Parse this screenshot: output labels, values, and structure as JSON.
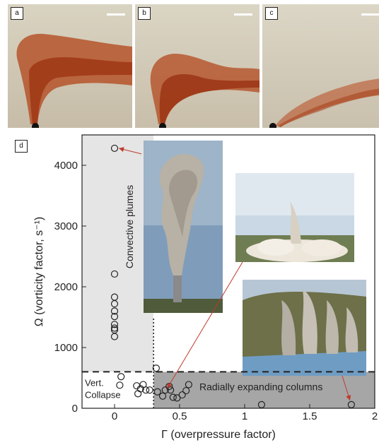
{
  "panels": [
    {
      "label": "a"
    },
    {
      "label": "b"
    },
    {
      "label": "c"
    }
  ],
  "panel_d_label": "d",
  "chart_data": {
    "type": "scatter",
    "xlabel": "Γ (overpressure factor)",
    "ylabel": "Ω (vorticity factor, s⁻¹)",
    "xlim": [
      -0.25,
      2.0
    ],
    "ylim": [
      0,
      4500
    ],
    "xticks": [
      0,
      0.5,
      1,
      1.5,
      2
    ],
    "xtick_labels": [
      "0",
      "0.5",
      "1",
      "1.5",
      "2"
    ],
    "yticks": [
      0,
      1000,
      2000,
      3000,
      4000
    ],
    "ytick_labels": [
      "0",
      "1000",
      "2000",
      "3000",
      "4000"
    ],
    "grid": false,
    "vertical_threshold": 0.3,
    "horizontal_threshold": 600,
    "regions": {
      "convective": "Convective plumes",
      "collapse": "Vert.\nCollapse",
      "radial": "Radially expanding columns"
    },
    "series": [
      {
        "points": [
          [
            0.0,
            4280
          ],
          [
            0.0,
            2210
          ],
          [
            0.0,
            1830
          ],
          [
            0.0,
            1720
          ],
          [
            0.0,
            1600
          ],
          [
            0.0,
            1510
          ],
          [
            0.0,
            1380
          ],
          [
            0.0,
            1320
          ],
          [
            0.0,
            1290
          ],
          [
            0.0,
            1180
          ],
          [
            0.05,
            520
          ],
          [
            0.04,
            380
          ],
          [
            0.17,
            370
          ],
          [
            0.22,
            390
          ],
          [
            0.2,
            320
          ],
          [
            0.24,
            300
          ],
          [
            0.27,
            300
          ],
          [
            0.18,
            240
          ],
          [
            0.32,
            660
          ],
          [
            0.33,
            270
          ],
          [
            0.37,
            200
          ],
          [
            0.39,
            300
          ],
          [
            0.42,
            360
          ],
          [
            0.43,
            300
          ],
          [
            0.45,
            180
          ],
          [
            0.48,
            170
          ],
          [
            0.52,
            220
          ],
          [
            0.55,
            290
          ],
          [
            0.57,
            390
          ],
          [
            1.13,
            60
          ],
          [
            1.82,
            60
          ]
        ]
      }
    ],
    "annotated_points": [
      [
        0.0,
        4280
      ],
      [
        0.35,
        280
      ],
      [
        1.82,
        60
      ]
    ]
  }
}
